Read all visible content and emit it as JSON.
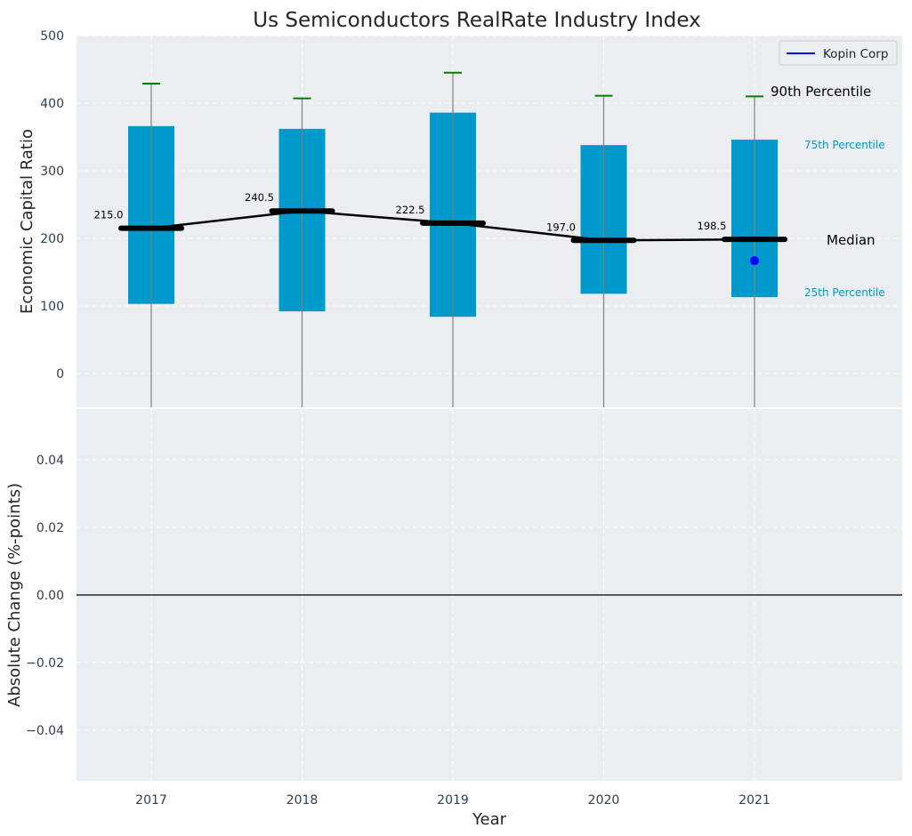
{
  "chart_data": {
    "type": "box",
    "title": "Us Semiconductors RealRate Industry Index",
    "xlabel": "Year",
    "categories": [
      "2017",
      "2018",
      "2019",
      "2020",
      "2021"
    ],
    "top_panel": {
      "ylabel": "Economic Capital Ratio",
      "ylim": [
        -50,
        500
      ],
      "yticks": [
        0,
        100,
        200,
        300,
        400,
        500
      ],
      "grid": true,
      "boxes": [
        {
          "year": "2017",
          "p25": 103,
          "median": 215.0,
          "p75": 366,
          "p90": 429,
          "median_label": "215.0"
        },
        {
          "year": "2018",
          "p25": 92,
          "median": 240.5,
          "p75": 362,
          "p90": 407,
          "median_label": "240.5"
        },
        {
          "year": "2019",
          "p25": 84,
          "median": 222.5,
          "p75": 386,
          "p90": 445,
          "median_label": "222.5"
        },
        {
          "year": "2020",
          "p25": 118,
          "median": 197.0,
          "p75": 338,
          "p90": 411,
          "median_label": "197.0"
        },
        {
          "year": "2021",
          "p25": 113,
          "median": 198.5,
          "p75": 346,
          "p90": 410,
          "median_label": "198.5"
        }
      ],
      "series": [
        {
          "name": "Kopin Corp",
          "values": [
            null,
            null,
            null,
            null,
            167
          ]
        }
      ],
      "legend": {
        "placement": "top-right",
        "entries": [
          "Kopin Corp"
        ]
      },
      "annotations": {
        "p90": "90th Percentile",
        "p75": "75th Percentile",
        "median": "Median",
        "p25": "25th Percentile"
      }
    },
    "bottom_panel": {
      "ylabel": "Absolute Change (%-points)",
      "ylim": [
        -0.055,
        0.055
      ],
      "yticks": [
        -0.04,
        -0.02,
        0.0,
        0.02,
        0.04
      ],
      "ytick_labels": [
        "−0.04",
        "−0.02",
        "0.00",
        "0.02",
        "0.04"
      ],
      "zero_line": true,
      "grid": true
    },
    "colors": {
      "box": "#0099cc",
      "median": "#000000",
      "p90_cap": "#008000",
      "whisker": "#808080",
      "company": "#0000ff",
      "plot_bg": "#eaeef0",
      "axis_text": "#2f3e55"
    }
  }
}
